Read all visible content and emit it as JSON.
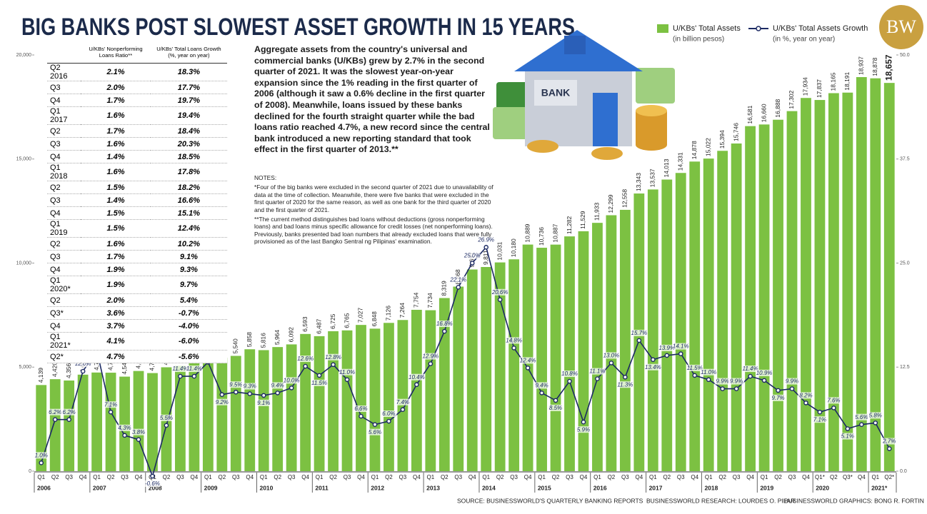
{
  "header": {
    "title": "BIG BANKS POST SLOWEST ASSET GROWTH IN 15 YEARS",
    "logo": "BW"
  },
  "chart_data": {
    "type": "bar",
    "categories": [
      "Q1",
      "Q2",
      "Q3",
      "Q4",
      "Q1",
      "Q2",
      "Q3",
      "Q4",
      "Q1",
      "Q2",
      "Q3",
      "Q4",
      "Q1",
      "Q2",
      "Q3",
      "Q4",
      "Q1",
      "Q2",
      "Q3",
      "Q4",
      "Q1",
      "Q2",
      "Q3",
      "Q4",
      "Q1",
      "Q2",
      "Q3",
      "Q4",
      "Q1",
      "Q2",
      "Q3",
      "Q4",
      "Q1",
      "Q2",
      "Q3",
      "Q4",
      "Q1",
      "Q2",
      "Q3",
      "Q4",
      "Q1",
      "Q2",
      "Q3",
      "Q4",
      "Q1",
      "Q2",
      "Q3",
      "Q4",
      "Q1",
      "Q2",
      "Q3",
      "Q4",
      "Q1",
      "Q2",
      "Q3",
      "Q4",
      "Q1*",
      "Q2",
      "Q3*",
      "Q4",
      "Q1",
      "Q2*"
    ],
    "years": [
      "2006",
      "2007",
      "2008",
      "2009",
      "2010",
      "2011",
      "2012",
      "2013",
      "2014",
      "2015",
      "2016",
      "2017",
      "2018",
      "2019",
      "2020",
      "2021*"
    ],
    "series": [
      {
        "name": "U/KBs' Total Assets",
        "note": "(in billion pesos)",
        "type": "bar",
        "color": "#7cc142",
        "values": [
          4139,
          4420,
          4356,
          4638,
          4740,
          4732,
          4543,
          4814,
          4714,
          4992,
          5061,
          5360,
          5332,
          5449,
          5540,
          5858,
          5816,
          5964,
          6092,
          6593,
          6487,
          6725,
          6765,
          7027,
          6848,
          7126,
          7264,
          7754,
          7734,
          8319,
          8868,
          9691,
          9811,
          10031,
          10180,
          10889,
          10736,
          10887,
          11282,
          11529,
          11933,
          12299,
          12558,
          13343,
          13537,
          14013,
          14331,
          14878,
          15022,
          15394,
          15746,
          16581,
          16660,
          16888,
          17302,
          17934,
          17837,
          18165,
          18191,
          18937,
          18878,
          18657
        ],
        "value_labels": [
          "4,139",
          "4,420",
          "4,356",
          "4,638",
          "4,740",
          "4,732",
          "4,543",
          "4,814",
          "4,714",
          "4,992",
          "5,061",
          "5,360",
          "5,332",
          "5,449",
          "5,540",
          "5,858",
          "5,816",
          "5,964",
          "6,092",
          "6,593",
          "6,487",
          "6,725",
          "6,765",
          "7,027",
          "6,848",
          "7,126",
          "7,264",
          "7,754",
          "7,734",
          "8,319",
          "8,868",
          "9,691",
          "9,811",
          "10,031",
          "10,180",
          "10,889",
          "10,736",
          "10,887",
          "11,282",
          "11,529",
          "11,933",
          "12,299",
          "12,558",
          "13,343",
          "13,537",
          "14,013",
          "14,331",
          "14,878",
          "15,022",
          "15,394",
          "15,746",
          "16,581",
          "16,660",
          "16,888",
          "17,302",
          "17,934",
          "17,837",
          "18,165",
          "18,191",
          "18,937",
          "18,878",
          "18,657"
        ]
      },
      {
        "name": "U/KBs' Total Assets Growth",
        "note": "(in %, year on year)",
        "type": "line",
        "axis": "y2",
        "color": "#1c2a63",
        "values": [
          1.0,
          6.2,
          6.2,
          12.0,
          14.5,
          7.1,
          4.3,
          3.8,
          -0.6,
          5.5,
          11.4,
          11.4,
          13.1,
          9.2,
          9.5,
          9.3,
          9.1,
          9.4,
          10.0,
          12.6,
          11.5,
          12.8,
          11.0,
          6.6,
          5.6,
          6.0,
          7.4,
          10.4,
          12.9,
          16.8,
          22.1,
          25.0,
          26.9,
          20.6,
          14.8,
          12.4,
          9.4,
          8.5,
          10.8,
          5.9,
          11.1,
          13.0,
          11.3,
          15.7,
          13.4,
          13.9,
          14.1,
          11.5,
          11.0,
          9.9,
          9.9,
          11.4,
          10.9,
          9.7,
          9.9,
          8.2,
          7.1,
          7.6,
          5.1,
          5.6,
          5.8,
          2.7
        ],
        "value_labels": [
          "1.0%",
          "6.2%",
          "6.2%",
          "12.0%",
          "14.5%",
          "7.1%",
          "4.3%",
          "3.8%",
          "-0.6%",
          "5.5%",
          "11.4%",
          "11.4%",
          "13.1%",
          "9.2%",
          "9.5%",
          "9.3%",
          "9.1%",
          "9.4%",
          "10.0%",
          "12.6%",
          "11.5%",
          "12.8%",
          "11.0%",
          "6.6%",
          "5.6%",
          "6.0%",
          "7.4%",
          "10.4%",
          "12.9%",
          "16.8%",
          "22.1%",
          "25.0%",
          "26.9%",
          "20.6%",
          "14.8%",
          "12.4%",
          "9.4%",
          "8.5%",
          "10.8%",
          "5.9%",
          "11.1%",
          "13.0%",
          "11.3%",
          "15.7%",
          "13.4%",
          "13.9%",
          "14.1%",
          "11.5%",
          "11.0%",
          "9.9%",
          "9.9%",
          "11.4%",
          "10.9%",
          "9.7%",
          "9.9%",
          "8.2%",
          "7.1%",
          "7.6%",
          "5.1%",
          "5.6%",
          "5.8%",
          "2.7%"
        ]
      }
    ],
    "ylim": [
      0,
      20000
    ],
    "yticks": [
      0,
      {
        "value": 5000,
        "label": "5,000"
      },
      {
        "value": 10000,
        "label": "10,000"
      },
      {
        "value": 15000,
        "label": "15,000"
      },
      {
        "value": 20000,
        "label": "20,000"
      }
    ],
    "y2lim": [
      0,
      50
    ],
    "y2ticks": [
      {
        "value": 0,
        "label": "0.0"
      },
      12.5,
      {
        "value": 25,
        "label": "25.0"
      },
      37.5,
      {
        "value": 50,
        "label": "50.0"
      }
    ],
    "grid": false
  },
  "table": {
    "columns": [
      "U/KBs' Nonperforming Loans Ratio**",
      "U/KBs' Total Loans Growth (%, year on year)"
    ],
    "rows": [
      [
        "Q2 2016",
        "2.1%",
        "18.3%"
      ],
      [
        "Q3",
        "2.0%",
        "17.7%"
      ],
      [
        "Q4",
        "1.7%",
        "19.7%"
      ],
      [
        "Q1 2017",
        "1.6%",
        "19.4%"
      ],
      [
        "Q2",
        "1.7%",
        "18.4%"
      ],
      [
        "Q3",
        "1.6%",
        "20.3%"
      ],
      [
        "Q4",
        "1.4%",
        "18.5%"
      ],
      [
        "Q1 2018",
        "1.6%",
        "17.8%"
      ],
      [
        "Q2",
        "1.5%",
        "18.2%"
      ],
      [
        "Q3",
        "1.4%",
        "16.6%"
      ],
      [
        "Q4",
        "1.5%",
        "15.1%"
      ],
      [
        "Q1 2019",
        "1.5%",
        "12.4%"
      ],
      [
        "Q2",
        "1.6%",
        "10.2%"
      ],
      [
        "Q3",
        "1.7%",
        "9.1%"
      ],
      [
        "Q4",
        "1.9%",
        "9.3%"
      ],
      [
        "Q1 2020*",
        "1.9%",
        "9.7%"
      ],
      [
        "Q2",
        "2.0%",
        "5.4%"
      ],
      [
        "Q3*",
        "3.6%",
        "-0.7%"
      ],
      [
        "Q4",
        "3.7%",
        "-4.0%"
      ],
      [
        "Q1 2021*",
        "4.1%",
        "-6.0%"
      ],
      [
        "Q2*",
        "4.7%",
        "-5.6%"
      ]
    ]
  },
  "text": {
    "summary": "Aggregate assets from the country's universal and commercial banks (U/KBs) grew by 2.7% in the second quarter of 2021. It was the slowest year-on-year expansion since the 1% reading in the first quarter of 2006 (although it saw a 0.6% decline in the first quarter of 2008). Meanwhile, loans issued by these banks declined for the fourth straight quarter while the bad loans ratio reached 4.7%, a new record since the central bank introduced a new reporting standard that took effect in the first quarter of 2013.**",
    "notes_heading": "NOTES:",
    "notes": [
      "*Four of the big banks were excluded in the second quarter of 2021 due to unavailability of data at the time of collection. Meanwhile, there were five banks that were excluded in the first quarter of 2020 for the same reason, as well as one bank for the third quarter of 2020 and the first quarter of 2021.",
      "**The current method distinguishes bad loans without deductions (gross nonperforming loans) and bad loans minus specific allowance for credit losses (net nonperforming loans). Previously, banks presented bad loan numbers that already excluded loans that were fully provisioned as of the last Bangko Sentral ng Pilipinas' examination."
    ],
    "illustration_label": "BANK"
  },
  "footer": {
    "source": "SOURCE: BUSINESSWORLD'S QUARTERLY BANKING REPORTS",
    "research": "BUSINESSWORLD RESEARCH: LOURDES O. PILAR",
    "graphics": "BUSINESSWORLD GRAPHICS: BONG R. FORTIN"
  }
}
